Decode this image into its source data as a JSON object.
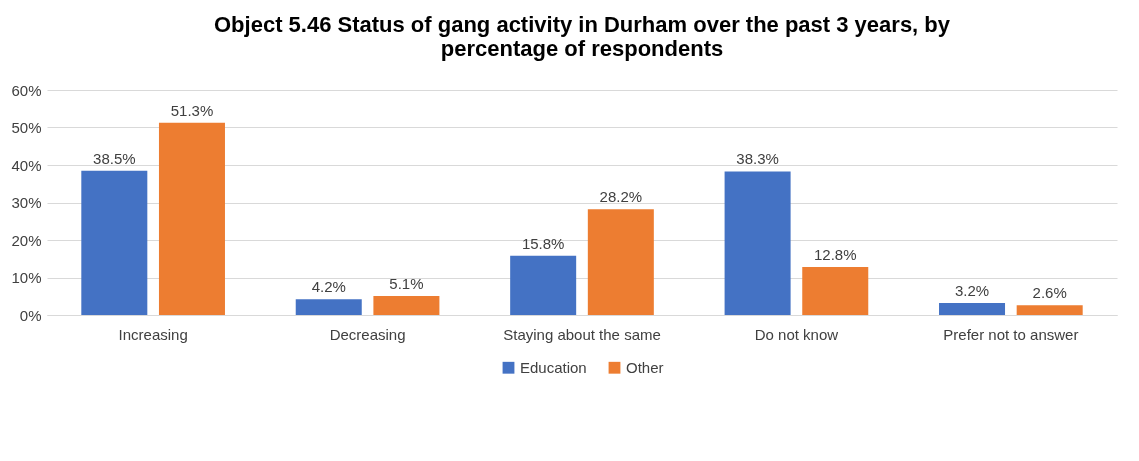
{
  "chart_data": {
    "type": "bar",
    "title": "Object 5.46 Status of gang activity in Durham over the past 3 years, by percentage of respondents",
    "categories": [
      "Increasing",
      "Decreasing",
      "Staying about the same",
      "Do not know",
      "Prefer not to answer"
    ],
    "series": [
      {
        "name": "Education",
        "color": "#4472c4",
        "values": [
          38.5,
          4.2,
          15.8,
          38.3,
          3.2
        ],
        "value_labels": [
          "38.5%",
          "4.2%",
          "15.8%",
          "38.3%",
          "3.2%"
        ]
      },
      {
        "name": "Other",
        "color": "#ed7d31",
        "values": [
          51.3,
          5.1,
          28.2,
          12.8,
          2.6
        ],
        "value_labels": [
          "51.3%",
          "5.1%",
          "28.2%",
          "12.8%",
          "2.6%"
        ]
      }
    ],
    "ylim": [
      0,
      60
    ],
    "yticks": [
      {
        "value": 0,
        "label": "0%"
      },
      {
        "value": 10,
        "label": "10%"
      },
      {
        "value": 20,
        "label": "20%"
      },
      {
        "value": 30,
        "label": "30%"
      },
      {
        "value": 40,
        "label": "40%"
      },
      {
        "value": 50,
        "label": "50%"
      },
      {
        "value": 60,
        "label": "60%"
      }
    ],
    "grid": "y",
    "legend": "bottom"
  }
}
